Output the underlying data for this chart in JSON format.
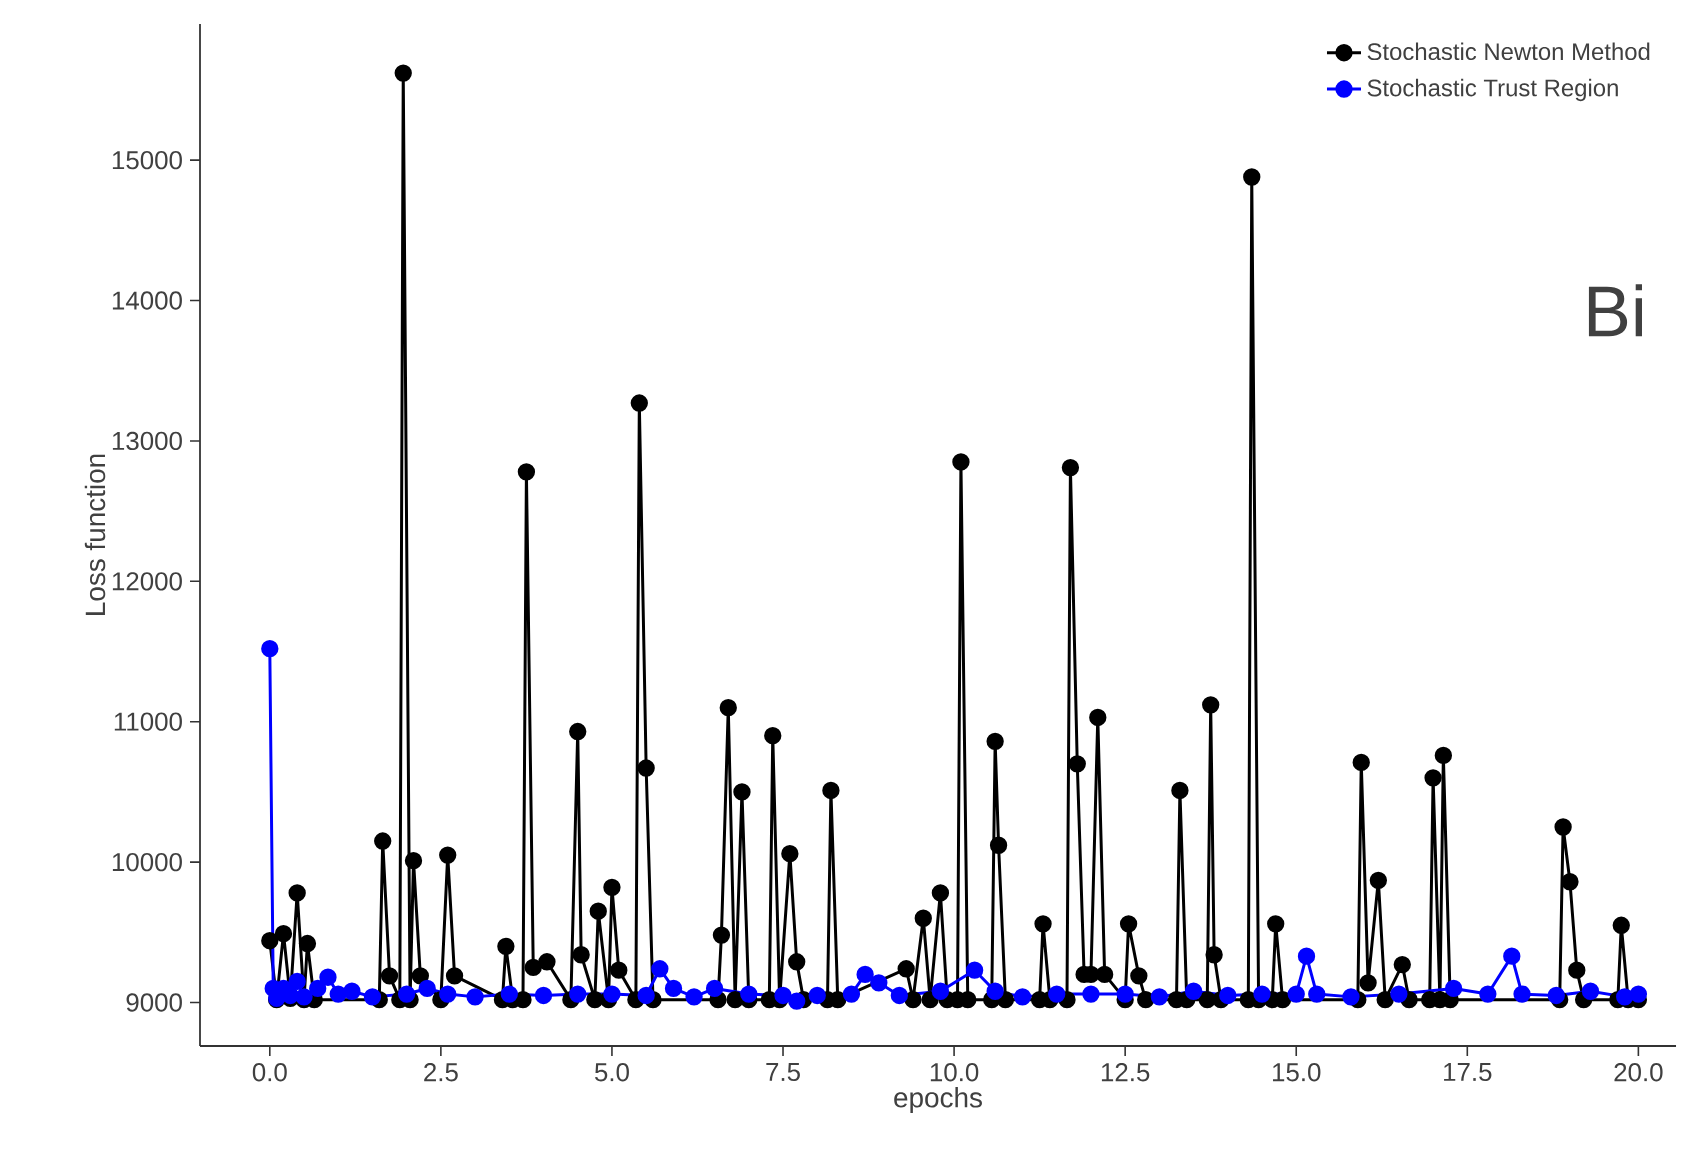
{
  "chart_data": {
    "type": "line",
    "xlabel": "epochs",
    "ylabel": "Loss function",
    "xlim": [
      -1.02,
      20.55
    ],
    "ylim": [
      8690,
      15970
    ],
    "xticks": [
      {
        "value": 0,
        "label": "0.0"
      },
      {
        "value": 2.5,
        "label": "2.5"
      },
      {
        "value": 5,
        "label": "5.0"
      },
      {
        "value": 7.5,
        "label": "7.5"
      },
      {
        "value": 10,
        "label": "10.0"
      },
      {
        "value": 12.5,
        "label": "12.5"
      },
      {
        "value": 15,
        "label": "15.0"
      },
      {
        "value": 17.5,
        "label": "17.5"
      },
      {
        "value": 20,
        "label": "20.0"
      }
    ],
    "yticks": [
      9000,
      10000,
      11000,
      12000,
      13000,
      14000,
      15000
    ],
    "grid": false,
    "legend": "top right",
    "marker": "circle",
    "line_style": "solid",
    "annotations": [
      "Bi"
    ],
    "series": [
      {
        "name": "Stochastic Newton Method",
        "color": "#000000",
        "x": [
          0,
          0.1,
          0.2,
          0.3,
          0.4,
          0.5,
          0.55,
          0.65,
          1.6,
          1.65,
          1.75,
          1.9,
          1.95,
          2.05,
          2.1,
          2.2,
          2.5,
          2.6,
          2.7,
          3.4,
          3.45,
          3.55,
          3.7,
          3.75,
          3.85,
          4.05,
          4.4,
          4.5,
          4.55,
          4.75,
          4.8,
          4.95,
          5.0,
          5.1,
          5.35,
          5.4,
          5.5,
          5.6,
          6.55,
          6.6,
          6.7,
          6.8,
          6.9,
          7.0,
          7.3,
          7.35,
          7.45,
          7.6,
          7.7,
          7.8,
          8.15,
          8.2,
          8.3,
          9.3,
          9.4,
          9.55,
          9.65,
          9.8,
          9.9,
          10.05,
          10.1,
          10.2,
          10.55,
          10.6,
          10.65,
          10.75,
          11.25,
          11.3,
          11.4,
          11.65,
          11.7,
          11.8,
          11.9,
          12.0,
          12.1,
          12.2,
          12.5,
          12.55,
          12.7,
          12.8,
          13.25,
          13.3,
          13.4,
          13.7,
          13.75,
          13.8,
          13.9,
          14.3,
          14.35,
          14.45,
          14.65,
          14.7,
          14.8,
          15.9,
          15.95,
          16.05,
          16.2,
          16.3,
          16.55,
          16.65,
          16.95,
          17.0,
          17.1,
          17.15,
          17.25,
          18.85,
          18.9,
          19.0,
          19.1,
          19.2,
          19.7,
          19.75,
          19.85,
          20.0
        ],
        "values": [
          9440,
          9020,
          9490,
          9030,
          9780,
          9020,
          9420,
          9020,
          9020,
          10150,
          9190,
          9020,
          15620,
          9020,
          10010,
          9190,
          9020,
          10050,
          9190,
          9020,
          9400,
          9020,
          9020,
          12780,
          9250,
          9290,
          9020,
          10930,
          9340,
          9020,
          9650,
          9020,
          9820,
          9230,
          9020,
          13270,
          10670,
          9020,
          9020,
          9480,
          11100,
          9020,
          10500,
          9020,
          9020,
          10900,
          9020,
          10060,
          9290,
          9020,
          9020,
          10510,
          9020,
          9240,
          9020,
          9600,
          9020,
          9780,
          9020,
          9020,
          12850,
          9020,
          9020,
          10860,
          10120,
          9020,
          9020,
          9560,
          9020,
          9020,
          12810,
          10700,
          9200,
          9200,
          11030,
          9200,
          9020,
          9560,
          9190,
          9020,
          9020,
          10510,
          9020,
          9020,
          11120,
          9340,
          9020,
          9020,
          14880,
          9020,
          9020,
          9560,
          9020,
          9020,
          10710,
          9140,
          9870,
          9020,
          9270,
          9020,
          9020,
          10600,
          9020,
          10760,
          9020,
          9020,
          10250,
          9860,
          9230,
          9020,
          9020,
          9550,
          9020,
          9020
        ]
      },
      {
        "name": "Stochastic Trust Region",
        "color": "#0000ff",
        "x": [
          0,
          0.05,
          0.1,
          0.2,
          0.3,
          0.4,
          0.5,
          0.7,
          0.85,
          1.0,
          1.2,
          1.5,
          2.0,
          2.3,
          2.6,
          3.0,
          3.5,
          4.0,
          4.5,
          5.0,
          5.5,
          5.7,
          5.9,
          6.2,
          6.5,
          7.0,
          7.5,
          7.7,
          8.0,
          8.5,
          8.7,
          8.9,
          9.2,
          9.8,
          10.3,
          10.6,
          11.0,
          11.5,
          12.0,
          12.5,
          13.0,
          13.5,
          14.0,
          14.5,
          15.0,
          15.15,
          15.3,
          15.8,
          16.5,
          17.3,
          17.8,
          18.15,
          18.3,
          18.8,
          19.3,
          19.8,
          20.0
        ],
        "values": [
          11520,
          9100,
          9030,
          9100,
          9050,
          9150,
          9040,
          9100,
          9180,
          9060,
          9080,
          9040,
          9060,
          9100,
          9060,
          9040,
          9060,
          9050,
          9060,
          9060,
          9050,
          9240,
          9100,
          9040,
          9100,
          9060,
          9050,
          9010,
          9050,
          9060,
          9200,
          9140,
          9050,
          9080,
          9230,
          9080,
          9040,
          9060,
          9060,
          9060,
          9040,
          9080,
          9050,
          9060,
          9060,
          9330,
          9060,
          9040,
          9060,
          9100,
          9060,
          9330,
          9060,
          9050,
          9080,
          9040,
          9060
        ]
      }
    ]
  }
}
